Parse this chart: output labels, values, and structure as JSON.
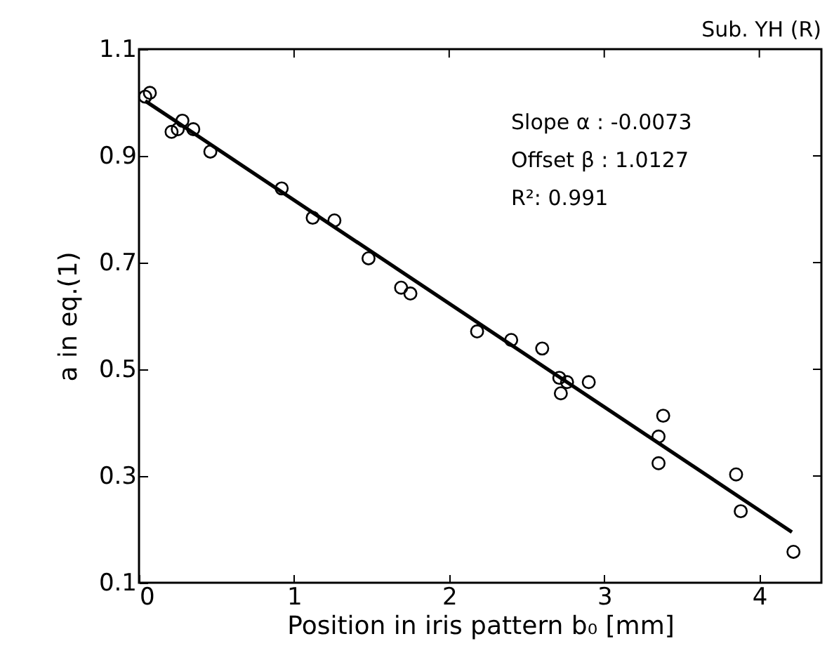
{
  "chart_data": {
    "type": "scatter",
    "xlabel": "Position in iris pattern b₀ [mm]",
    "ylabel": "a in eq.(1)",
    "annotations": [
      "Sub. YH (R)",
      "Slope α : -0.0073",
      "Offset β :  1.0127",
      "R²: 0.991"
    ],
    "xlim": [
      0,
      4.4
    ],
    "ylim": [
      0.1,
      1.1
    ],
    "xticks": [
      0,
      1,
      2,
      3,
      4
    ],
    "yticks": [
      0.1,
      0.3,
      0.5,
      0.7,
      0.9,
      1.1
    ],
    "grid": false,
    "series": [
      {
        "marker": "circle",
        "color": "#000000",
        "x": [
          0.04,
          0.07,
          0.21,
          0.28,
          0.25,
          0.35,
          0.46,
          0.92,
          1.12,
          1.26,
          1.48,
          1.69,
          1.75,
          2.18,
          2.4,
          2.6,
          2.71,
          2.76,
          2.72,
          2.9,
          3.38,
          3.35,
          3.35,
          3.85,
          3.88,
          4.22
        ],
        "values": [
          1.011,
          1.018,
          0.945,
          0.966,
          0.95,
          0.95,
          0.908,
          0.839,
          0.784,
          0.779,
          0.708,
          0.653,
          0.642,
          0.571,
          0.555,
          0.539,
          0.484,
          0.476,
          0.455,
          0.476,
          0.413,
          0.374,
          0.324,
          0.303,
          0.234,
          0.158
        ]
      },
      {
        "type": "line",
        "marker": "none",
        "color": "#000000",
        "x": [
          0.04,
          4.21
        ],
        "values": [
          1.003,
          0.195
        ]
      }
    ]
  }
}
